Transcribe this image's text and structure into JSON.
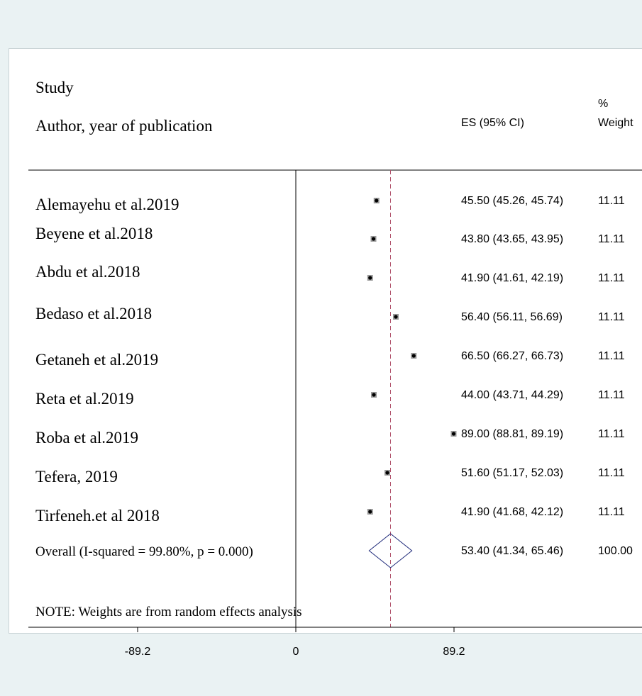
{
  "header": {
    "study": "Study",
    "author": "Author, year of publication",
    "es": "ES (95% CI)",
    "pct": "%",
    "weight": "Weight"
  },
  "note": "NOTE: Weights are from random effects analysis",
  "chart_data": {
    "type": "forest",
    "x_ticks": [
      "-89.2",
      "0",
      "89.2"
    ],
    "xlim": [
      -89.2,
      89.2
    ],
    "reference_line": 0,
    "overall_line": 53.4,
    "studies": [
      {
        "label": "Alemayehu et al.2019",
        "es": 45.5,
        "lo": 45.26,
        "hi": 45.74,
        "es_text": "45.50 (45.26, 45.74)",
        "weight": "11.11"
      },
      {
        "label": "Beyene et al.2018",
        "es": 43.8,
        "lo": 43.65,
        "hi": 43.95,
        "es_text": "43.80 (43.65, 43.95)",
        "weight": "11.11"
      },
      {
        "label": "Abdu et al.2018",
        "es": 41.9,
        "lo": 41.61,
        "hi": 42.19,
        "es_text": "41.90 (41.61, 42.19)",
        "weight": "11.11"
      },
      {
        "label": "Bedaso et al.2018",
        "es": 56.4,
        "lo": 56.11,
        "hi": 56.69,
        "es_text": "56.40 (56.11, 56.69)",
        "weight": "11.11"
      },
      {
        "label": "Getaneh et al.2019",
        "es": 66.5,
        "lo": 66.27,
        "hi": 66.73,
        "es_text": "66.50 (66.27, 66.73)",
        "weight": "11.11"
      },
      {
        "label": "Reta et al.2019",
        "es": 44.0,
        "lo": 43.71,
        "hi": 44.29,
        "es_text": "44.00 (43.71, 44.29)",
        "weight": "11.11"
      },
      {
        "label": "Roba et al.2019",
        "es": 89.0,
        "lo": 88.81,
        "hi": 89.19,
        "es_text": "89.00 (88.81, 89.19)",
        "weight": "11.11"
      },
      {
        "label": "Tefera, 2019",
        "es": 51.6,
        "lo": 51.17,
        "hi": 52.03,
        "es_text": "51.60 (51.17, 52.03)",
        "weight": "11.11"
      },
      {
        "label": "Tirfeneh.et al 2018",
        "es": 41.9,
        "lo": 41.68,
        "hi": 42.12,
        "es_text": "41.90 (41.68, 42.12)",
        "weight": "11.11"
      }
    ],
    "overall": {
      "label": "Overall  (I-squared = 99.80%, p = 0.000)",
      "es": 53.4,
      "lo": 41.34,
      "hi": 65.46,
      "es_text": "53.40 (41.34, 65.46)",
      "weight": "100.00"
    },
    "colors": {
      "marker": "#000000",
      "marker_box": "#9a9a9a",
      "diamond": "#1f2a7a",
      "overall_line": "#b0506a",
      "axis": "#000000"
    }
  }
}
